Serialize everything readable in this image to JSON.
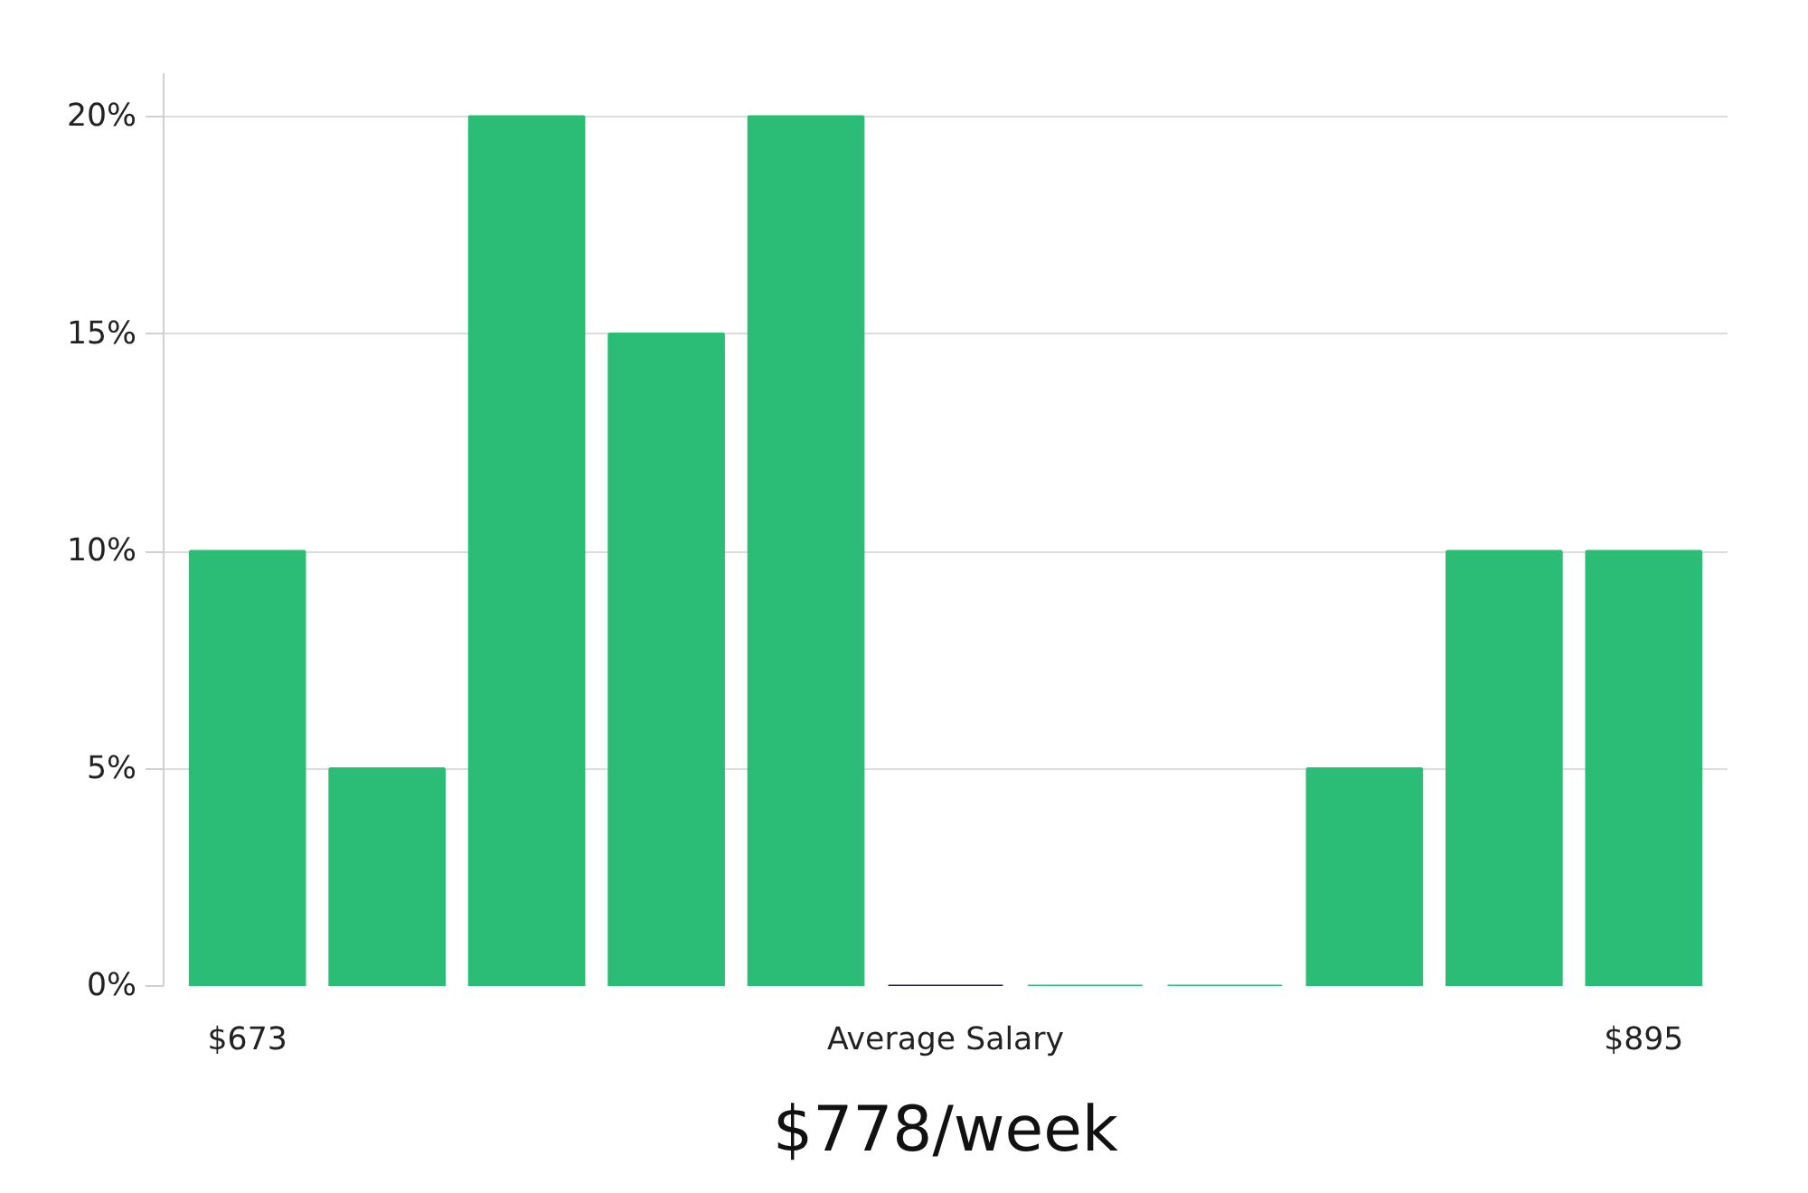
{
  "chart_data": {
    "type": "bar",
    "categories": [
      "$673",
      null,
      null,
      null,
      null,
      "Average Salary",
      null,
      null,
      null,
      null,
      "$895"
    ],
    "values": [
      10,
      5,
      20,
      15,
      20,
      0,
      0,
      0,
      5,
      10,
      10
    ],
    "colors": [
      "#2bbd75",
      "#2bbd75",
      "#2bbd75",
      "#2bbd75",
      "#2bbd75",
      "#1c1c3c",
      "#2bbd75",
      "#2bbd75",
      "#2bbd75",
      "#2bbd75",
      "#2bbd75"
    ],
    "ylim": [
      0,
      21
    ],
    "yticks": [
      {
        "value": 0,
        "label": "0%"
      },
      {
        "value": 5,
        "label": "5%"
      },
      {
        "value": 10,
        "label": "10%"
      },
      {
        "value": 15,
        "label": "15%"
      },
      {
        "value": 20,
        "label": "20%"
      }
    ],
    "grid": "y",
    "annotations": [
      "$778/week"
    ]
  }
}
